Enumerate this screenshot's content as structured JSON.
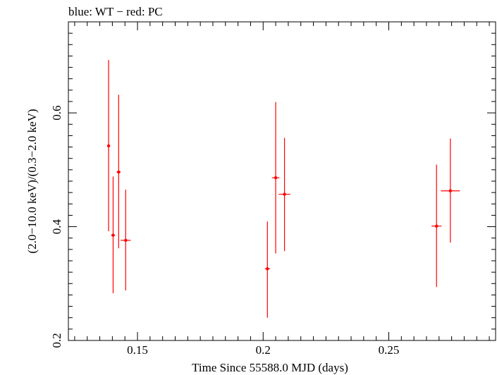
{
  "chart_data": {
    "type": "scatter",
    "title": "blue: WT − red: PC",
    "xlabel": "Time Since 55588.0 MJD (days)",
    "ylabel": "(2.0−10.0 keV)/(0.3−2.0 keV)",
    "xlim": [
      0.1225,
      0.2925
    ],
    "ylim": [
      0.2,
      0.76
    ],
    "x_ticks": [
      {
        "value": 0.15,
        "label": "0.15"
      },
      {
        "value": 0.2,
        "label": "0.2"
      },
      {
        "value": 0.25,
        "label": "0.25"
      }
    ],
    "y_ticks": [
      {
        "value": 0.2,
        "label": "0.2"
      },
      {
        "value": 0.4,
        "label": "0.4"
      },
      {
        "value": 0.6,
        "label": "0.6"
      }
    ],
    "grid": false,
    "series": [
      {
        "name": "PC",
        "color": "#ff0000",
        "points": [
          {
            "x": 0.1385,
            "y": 0.542,
            "xerr": 0.0005,
            "ylo": 0.392,
            "yhi": 0.693
          },
          {
            "x": 0.1403,
            "y": 0.385,
            "xerr": 0.0008,
            "ylo": 0.283,
            "yhi": 0.488
          },
          {
            "x": 0.1425,
            "y": 0.496,
            "xerr": 0.0008,
            "ylo": 0.362,
            "yhi": 0.632
          },
          {
            "x": 0.1453,
            "y": 0.376,
            "xerr": 0.002,
            "ylo": 0.288,
            "yhi": 0.465
          },
          {
            "x": 0.2017,
            "y": 0.326,
            "xerr": 0.001,
            "ylo": 0.24,
            "yhi": 0.409
          },
          {
            "x": 0.205,
            "y": 0.486,
            "xerr": 0.0015,
            "ylo": 0.353,
            "yhi": 0.619
          },
          {
            "x": 0.2085,
            "y": 0.457,
            "xerr": 0.0023,
            "ylo": 0.357,
            "yhi": 0.556
          },
          {
            "x": 0.269,
            "y": 0.401,
            "xerr": 0.002,
            "ylo": 0.294,
            "yhi": 0.509
          },
          {
            "x": 0.2745,
            "y": 0.463,
            "xerr": 0.0038,
            "ylo": 0.372,
            "yhi": 0.555
          }
        ]
      }
    ]
  }
}
